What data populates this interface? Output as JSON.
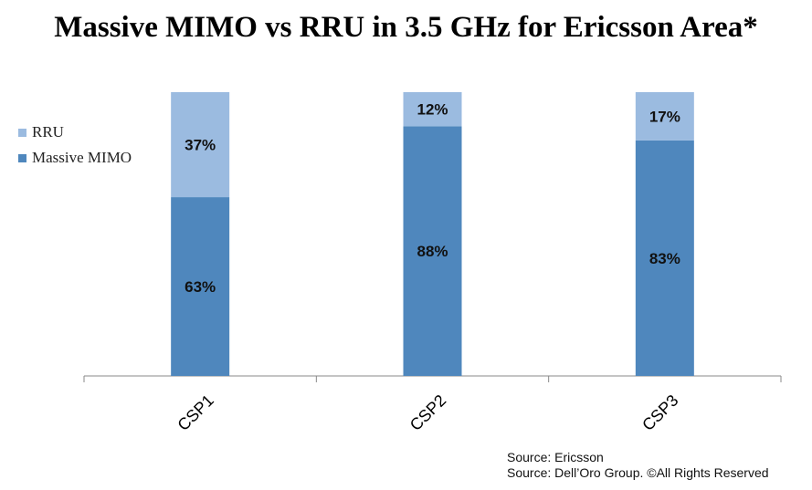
{
  "chart_data": {
    "type": "bar",
    "stacked": true,
    "percent": true,
    "title": "Massive MIMO vs RRU in 3.5 GHz for Ericsson Area*",
    "categories": [
      "CSP1",
      "CSP2",
      "CSP3"
    ],
    "series": [
      {
        "name": "Massive MIMO",
        "values": [
          63,
          88,
          83
        ],
        "labels": [
          "63%",
          "88%",
          "83%"
        ],
        "color": "#4f87bd"
      },
      {
        "name": "RRU",
        "values": [
          37,
          12,
          17
        ],
        "labels": [
          "37%",
          "12%",
          "17%"
        ],
        "color": "#9bbbe0"
      }
    ],
    "ylim": [
      0,
      100
    ],
    "grid": false,
    "legend": "left",
    "legend_entries": [
      "RRU",
      "Massive MIMO"
    ]
  },
  "sources": [
    "Source: Ericsson",
    "Source: Dell’Oro Group. ©All Rights Reserved"
  ]
}
